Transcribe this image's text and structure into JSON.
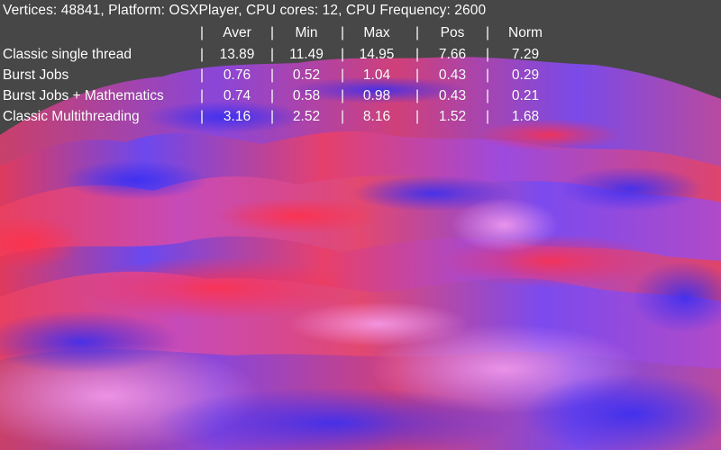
{
  "info_line": "Vertices: 48841, Platform: OSXPlayer, CPU cores: 12, CPU Frequency: 2600",
  "separator": "|",
  "table": {
    "headers": [
      "Aver",
      "Min",
      "Max",
      "Pos",
      "Norm"
    ],
    "rows": [
      {
        "label": "Classic single thread",
        "values": [
          "13.89",
          "11.49",
          "14.95",
          "7.66",
          "7.29"
        ]
      },
      {
        "label": "Burst Jobs",
        "values": [
          "0.76",
          "0.52",
          "1.04",
          "0.43",
          "0.29"
        ]
      },
      {
        "label": "Burst Jobs + Mathematics",
        "values": [
          "0.74",
          "0.58",
          "0.98",
          "0.43",
          "0.21"
        ]
      },
      {
        "label": "Classic Multithreading",
        "values": [
          "3.16",
          "2.52",
          "8.16",
          "1.52",
          "1.68"
        ]
      }
    ]
  },
  "colors": {
    "background": "#474747",
    "terrain_red": "#e8324f",
    "terrain_blue": "#5a3cf0",
    "terrain_pink": "#f06ad8",
    "text": "#ffffff"
  }
}
